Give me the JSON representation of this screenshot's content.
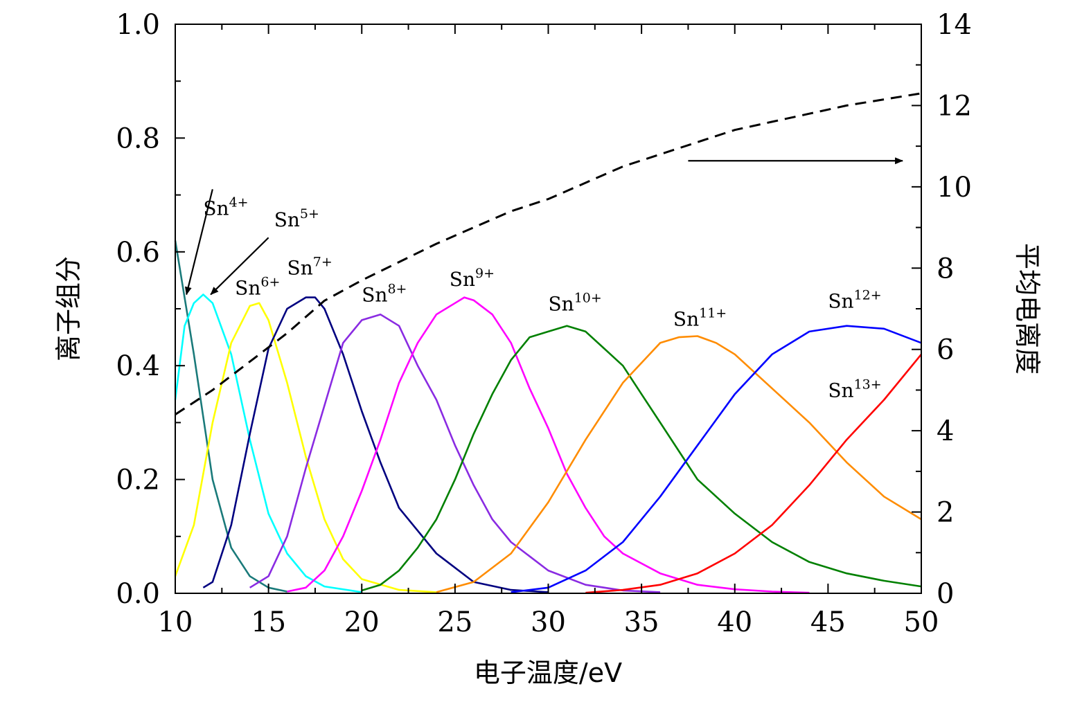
{
  "chart_data": {
    "type": "line",
    "xlabel": "电子温度/eV",
    "ylabel": "离子组分",
    "y2label": "平均电离度",
    "xlim": [
      10,
      50
    ],
    "ylim": [
      0,
      1.0
    ],
    "y2lim": [
      0,
      14
    ],
    "grid": false,
    "legend": "none",
    "x_ticks": [
      "10",
      "15",
      "20",
      "25",
      "30",
      "35",
      "40",
      "45",
      "50"
    ],
    "y_ticks": [
      "0.0",
      "0.2",
      "0.4",
      "0.6",
      "0.8",
      "1.0"
    ],
    "y2_ticks": [
      "0",
      "2",
      "4",
      "6",
      "8",
      "10",
      "12",
      "14"
    ],
    "series": [
      {
        "name": "Sn4+",
        "color": "#1a7a7a",
        "style": "solid",
        "axis": "left",
        "x": [
          10,
          11,
          12,
          13,
          14,
          15,
          16
        ],
        "y": [
          0.62,
          0.42,
          0.2,
          0.08,
          0.03,
          0.01,
          0.003
        ]
      },
      {
        "name": "Sn5+",
        "color": "#00ffff",
        "style": "solid",
        "axis": "left",
        "x": [
          10,
          10.5,
          11,
          11.5,
          12,
          13,
          14,
          15,
          16,
          17,
          18,
          20
        ],
        "y": [
          0.34,
          0.47,
          0.51,
          0.525,
          0.51,
          0.42,
          0.27,
          0.14,
          0.07,
          0.03,
          0.012,
          0.002
        ]
      },
      {
        "name": "Sn6+",
        "color": "#ffff00",
        "style": "solid",
        "axis": "left",
        "x": [
          10,
          11,
          12,
          13,
          14,
          14.5,
          15,
          16,
          17,
          18,
          19,
          20,
          22,
          24
        ],
        "y": [
          0.03,
          0.12,
          0.3,
          0.44,
          0.505,
          0.51,
          0.48,
          0.37,
          0.24,
          0.13,
          0.06,
          0.025,
          0.006,
          0.002
        ]
      },
      {
        "name": "Sn7+",
        "color": "#000080",
        "style": "solid",
        "axis": "left",
        "x": [
          11.5,
          12,
          13,
          14,
          15,
          16,
          17,
          17.5,
          18,
          19,
          20,
          21,
          22,
          24,
          26,
          28,
          30
        ],
        "y": [
          0.01,
          0.02,
          0.12,
          0.28,
          0.43,
          0.5,
          0.52,
          0.52,
          0.5,
          0.42,
          0.32,
          0.23,
          0.15,
          0.07,
          0.02,
          0.006,
          0.002
        ]
      },
      {
        "name": "Sn8+",
        "color": "#8a2be2",
        "style": "solid",
        "axis": "left",
        "x": [
          14,
          15,
          16,
          17,
          18,
          19,
          20,
          21,
          22,
          23,
          24,
          25,
          26,
          27,
          28,
          30,
          32,
          34,
          36
        ],
        "y": [
          0.01,
          0.03,
          0.1,
          0.22,
          0.33,
          0.44,
          0.48,
          0.49,
          0.47,
          0.4,
          0.34,
          0.26,
          0.19,
          0.13,
          0.09,
          0.04,
          0.015,
          0.005,
          0.002
        ]
      },
      {
        "name": "Sn9+",
        "color": "#ff00ff",
        "style": "solid",
        "axis": "left",
        "x": [
          16,
          17,
          18,
          19,
          20,
          21,
          22,
          23,
          24,
          25,
          25.5,
          26,
          27,
          28,
          29,
          30,
          31,
          32,
          33,
          34,
          36,
          38,
          40,
          42,
          44
        ],
        "y": [
          0.003,
          0.01,
          0.04,
          0.1,
          0.18,
          0.27,
          0.37,
          0.44,
          0.49,
          0.51,
          0.52,
          0.515,
          0.49,
          0.44,
          0.36,
          0.29,
          0.21,
          0.15,
          0.1,
          0.07,
          0.035,
          0.015,
          0.007,
          0.003,
          0.001
        ]
      },
      {
        "name": "Sn10+",
        "color": "#008000",
        "style": "solid",
        "axis": "left",
        "x": [
          20,
          21,
          22,
          23,
          24,
          25,
          26,
          27,
          28,
          29,
          30,
          31,
          32,
          33,
          34,
          35,
          36,
          37,
          38,
          40,
          42,
          44,
          46,
          48,
          50
        ],
        "y": [
          0.005,
          0.015,
          0.04,
          0.08,
          0.13,
          0.2,
          0.28,
          0.35,
          0.41,
          0.45,
          0.46,
          0.47,
          0.46,
          0.43,
          0.4,
          0.35,
          0.3,
          0.25,
          0.2,
          0.14,
          0.09,
          0.055,
          0.035,
          0.022,
          0.012
        ]
      },
      {
        "name": "Sn11+",
        "color": "#ff8c00",
        "style": "solid",
        "axis": "left",
        "x": [
          24,
          26,
          28,
          30,
          32,
          34,
          36,
          37,
          38,
          39,
          40,
          42,
          44,
          46,
          48,
          50
        ],
        "y": [
          0.002,
          0.02,
          0.07,
          0.16,
          0.27,
          0.37,
          0.44,
          0.45,
          0.452,
          0.44,
          0.42,
          0.36,
          0.3,
          0.23,
          0.17,
          0.13
        ]
      },
      {
        "name": "Sn12+",
        "color": "#0000ff",
        "style": "solid",
        "axis": "left",
        "x": [
          28,
          30,
          32,
          34,
          36,
          38,
          40,
          42,
          44,
          46,
          48,
          50
        ],
        "y": [
          0.002,
          0.01,
          0.04,
          0.09,
          0.17,
          0.26,
          0.35,
          0.42,
          0.46,
          0.47,
          0.465,
          0.44
        ]
      },
      {
        "name": "Sn13+",
        "color": "#ff0000",
        "style": "solid",
        "axis": "left",
        "x": [
          32,
          34,
          36,
          38,
          40,
          42,
          44,
          46,
          48,
          50
        ],
        "y": [
          0.001,
          0.006,
          0.015,
          0.035,
          0.07,
          0.12,
          0.19,
          0.27,
          0.34,
          0.42
        ]
      },
      {
        "name": "",
        "color": "#000000",
        "style": "dashed",
        "axis": "right",
        "x": [
          10,
          12,
          14,
          16,
          18,
          20,
          22,
          24,
          26,
          28,
          30,
          32,
          34,
          36,
          38,
          40,
          42,
          44,
          46,
          48,
          50
        ],
        "y": [
          4.4,
          5.0,
          5.7,
          6.4,
          7.2,
          7.7,
          8.15,
          8.6,
          9.0,
          9.4,
          9.7,
          10.1,
          10.5,
          10.8,
          11.1,
          11.4,
          11.6,
          11.8,
          12.0,
          12.15,
          12.3
        ]
      }
    ],
    "annotations": [
      {
        "base": "Sn",
        "sup": "4+",
        "x": 11.5,
        "y": 0.665
      },
      {
        "base": "Sn",
        "sup": "5+",
        "x": 15.3,
        "y": 0.645
      },
      {
        "base": "Sn",
        "sup": "6+",
        "x": 13.2,
        "y": 0.525
      },
      {
        "base": "Sn",
        "sup": "7+",
        "x": 16.0,
        "y": 0.56
      },
      {
        "base": "Sn",
        "sup": "8+",
        "x": 20.0,
        "y": 0.513
      },
      {
        "base": "Sn",
        "sup": "9+",
        "x": 24.7,
        "y": 0.54
      },
      {
        "base": "Sn",
        "sup": "10+",
        "x": 30.0,
        "y": 0.497
      },
      {
        "base": "Sn",
        "sup": "11+",
        "x": 36.7,
        "y": 0.47
      },
      {
        "base": "Sn",
        "sup": "12+",
        "x": 45.0,
        "y": 0.502
      },
      {
        "base": "Sn",
        "sup": "13+",
        "x": 45.0,
        "y": 0.345
      }
    ],
    "arrows": [
      {
        "from": [
          12.0,
          0.71
        ],
        "to": [
          10.6,
          0.525
        ]
      },
      {
        "from": [
          15.0,
          0.625
        ],
        "to": [
          11.9,
          0.525
        ]
      },
      {
        "from": [
          37.5,
          0.76
        ],
        "to": [
          49.0,
          0.76
        ]
      }
    ]
  }
}
